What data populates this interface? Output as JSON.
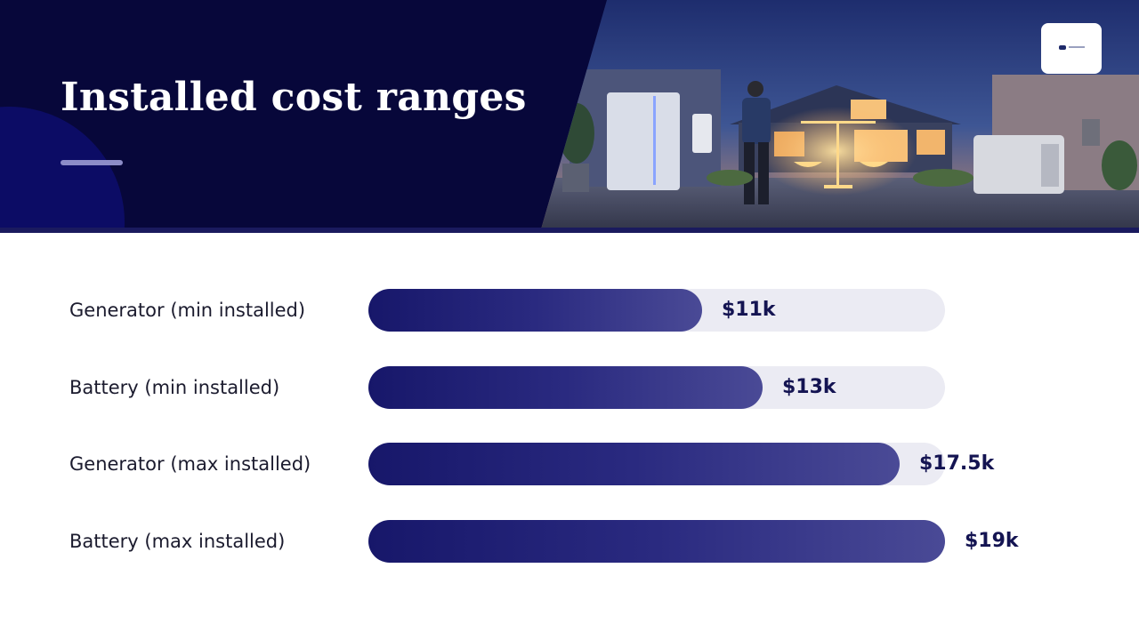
{
  "slide": {
    "title": "Installed cost ranges"
  },
  "colors": {
    "header_bg": "#07073a",
    "bar_start": "#17176a",
    "bar_end": "#4a4a96",
    "track": "#ebebf3",
    "value_text": "#141452",
    "accent_underline": "#8c8cc8"
  },
  "chart_data": {
    "type": "bar",
    "orientation": "horizontal",
    "categories": [
      "Generator (min installed)",
      "Battery (min installed)",
      "Generator (max installed)",
      "Battery (max installed)"
    ],
    "values": [
      11,
      13,
      17.5,
      19
    ],
    "value_labels": [
      "$11k",
      "$13k",
      "$17.5k",
      "$19k"
    ],
    "unit": "$k",
    "xlim": [
      0,
      19
    ],
    "grid": false,
    "legend": "none"
  }
}
